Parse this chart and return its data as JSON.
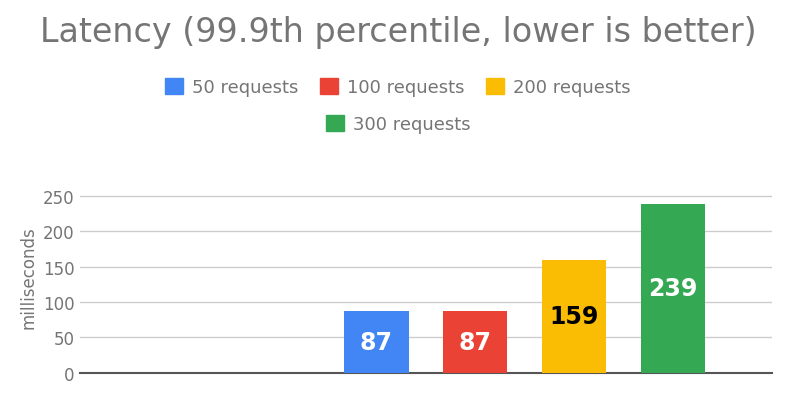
{
  "title": "Latency (99.9th percentile, lower is better)",
  "ylabel": "milliseconds",
  "background_color": "#ffffff",
  "title_color": "#757575",
  "title_fontsize": 24,
  "ylabel_fontsize": 12,
  "bars": [
    {
      "label": "50 requests",
      "value": 87,
      "color": "#4285F4",
      "x": 3,
      "text_color": "white"
    },
    {
      "label": "100 requests",
      "value": 87,
      "color": "#EA4335",
      "x": 4,
      "text_color": "white"
    },
    {
      "label": "200 requests",
      "value": 159,
      "color": "#FBBC04",
      "x": 5,
      "text_color": "black"
    },
    {
      "label": "300 requests",
      "value": 239,
      "color": "#34A853",
      "x": 6,
      "text_color": "white"
    }
  ],
  "ylim": [
    0,
    270
  ],
  "yticks": [
    0,
    50,
    100,
    150,
    200,
    250
  ],
  "xlim": [
    0,
    7
  ],
  "bar_width": 0.65,
  "grid_color": "#cccccc",
  "legend_fontsize": 13,
  "value_fontsize": 17
}
